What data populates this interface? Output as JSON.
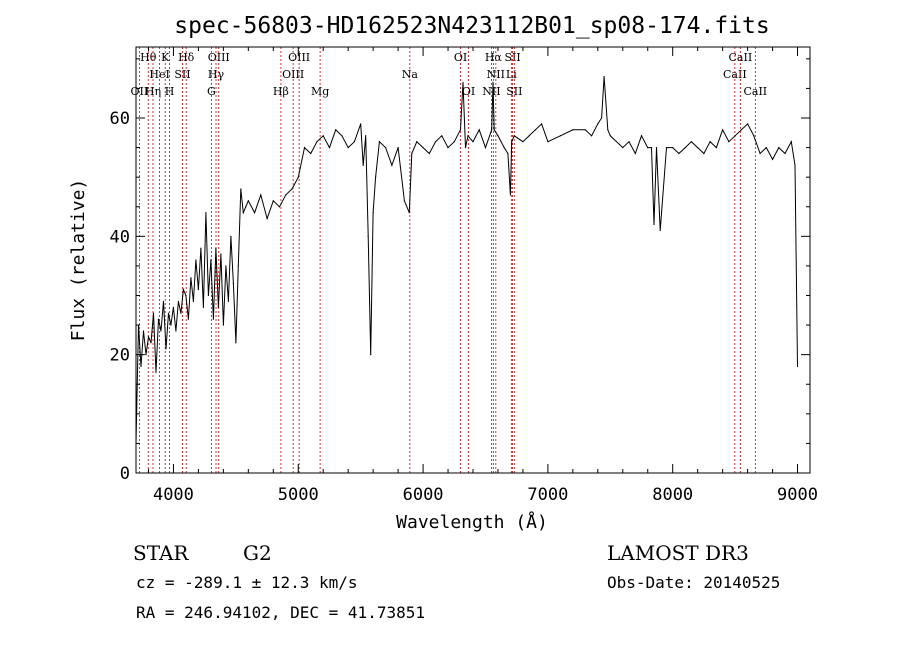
{
  "chart_data": {
    "type": "line",
    "title": "spec-56803-HD162523N423112B01_sp08-174.fits",
    "xlabel": "Wavelength (Å)",
    "ylabel": "Flux (relative)",
    "xlim": [
      3700,
      9100
    ],
    "ylim": [
      0,
      72
    ],
    "xticks": [
      4000,
      5000,
      6000,
      7000,
      8000,
      9000
    ],
    "yticks": [
      0,
      20,
      40,
      60
    ],
    "series": [
      {
        "name": "flux",
        "x": [
          3700,
          3720,
          3740,
          3760,
          3780,
          3800,
          3820,
          3840,
          3860,
          3880,
          3900,
          3920,
          3940,
          3960,
          3980,
          4000,
          4020,
          4040,
          4060,
          4080,
          4100,
          4120,
          4140,
          4160,
          4180,
          4200,
          4220,
          4240,
          4260,
          4280,
          4300,
          4320,
          4340,
          4360,
          4380,
          4400,
          4420,
          4440,
          4460,
          4480,
          4500,
          4520,
          4540,
          4560,
          4580,
          4600,
          4650,
          4700,
          4750,
          4800,
          4850,
          4900,
          4950,
          5000,
          5050,
          5100,
          5150,
          5200,
          5250,
          5300,
          5350,
          5400,
          5450,
          5500,
          5520,
          5540,
          5560,
          5580,
          5600,
          5620,
          5650,
          5700,
          5750,
          5800,
          5850,
          5890,
          5910,
          5950,
          6000,
          6050,
          6100,
          6150,
          6200,
          6250,
          6300,
          6320,
          6340,
          6360,
          6400,
          6450,
          6500,
          6550,
          6560,
          6570,
          6600,
          6650,
          6680,
          6700,
          6710,
          6730,
          6800,
          6850,
          6900,
          6950,
          7000,
          7100,
          7200,
          7300,
          7350,
          7400,
          7430,
          7450,
          7480,
          7500,
          7600,
          7650,
          7700,
          7750,
          7800,
          7830,
          7850,
          7870,
          7900,
          7950,
          8000,
          8050,
          8100,
          8150,
          8200,
          8250,
          8300,
          8350,
          8400,
          8450,
          8500,
          8550,
          8600,
          8650,
          8700,
          8750,
          8800,
          8850,
          8900,
          8950,
          8980,
          9000
        ],
        "values": [
          5,
          25,
          18,
          24,
          20,
          23,
          22,
          27,
          17,
          26,
          24,
          29,
          21,
          27,
          25,
          28,
          24,
          29,
          27,
          31,
          30,
          26,
          33,
          29,
          36,
          31,
          38,
          28,
          44,
          30,
          36,
          26,
          38,
          28,
          37,
          25,
          35,
          29,
          40,
          32,
          22,
          35,
          48,
          44,
          45,
          46,
          44,
          47,
          43,
          46,
          45,
          47,
          48,
          50,
          55,
          54,
          56,
          57,
          55,
          58,
          57,
          55,
          56,
          59,
          52,
          57,
          40,
          20,
          44,
          50,
          56,
          55,
          52,
          55,
          46,
          44,
          54,
          56,
          55,
          54,
          56,
          57,
          55,
          56,
          58,
          66,
          55,
          57,
          56,
          58,
          55,
          58,
          66,
          58,
          57,
          55,
          54,
          47,
          56,
          57,
          56,
          57,
          58,
          59,
          56,
          57,
          58,
          58,
          57,
          59,
          60,
          67,
          58,
          57,
          55,
          56,
          54,
          57,
          55,
          55,
          42,
          55,
          41,
          55,
          55,
          54,
          55,
          56,
          55,
          54,
          56,
          55,
          58,
          56,
          57,
          58,
          59,
          57,
          54,
          55,
          53,
          55,
          54,
          56,
          52,
          18
        ]
      }
    ],
    "line_markers": [
      {
        "label": "OII",
        "wavelength": 3727,
        "row": 2
      },
      {
        "label": "Hθ",
        "wavelength": 3798,
        "row": 0
      },
      {
        "label": "Hη",
        "wavelength": 3836,
        "row": 2
      },
      {
        "label": "HeI",
        "wavelength": 3889,
        "row": 1
      },
      {
        "label": "K",
        "wavelength": 3934,
        "row": 0
      },
      {
        "label": "H",
        "wavelength": 3969,
        "row": 2
      },
      {
        "label": "SII",
        "wavelength": 4072,
        "row": 1
      },
      {
        "label": "Hδ",
        "wavelength": 4102,
        "row": 0
      },
      {
        "label": "G",
        "wavelength": 4304,
        "row": 2
      },
      {
        "label": "Hγ",
        "wavelength": 4341,
        "row": 1
      },
      {
        "label": "OIII",
        "wavelength": 4363,
        "row": 0
      },
      {
        "label": "Hβ",
        "wavelength": 4861,
        "row": 2
      },
      {
        "label": "OIII",
        "wavelength": 4959,
        "row": 1
      },
      {
        "label": "OIII",
        "wavelength": 5007,
        "row": 0
      },
      {
        "label": "Mg",
        "wavelength": 5175,
        "row": 2
      },
      {
        "label": "Na",
        "wavelength": 5894,
        "row": 1
      },
      {
        "label": "OI",
        "wavelength": 6300,
        "row": 0
      },
      {
        "label": "OI",
        "wavelength": 6364,
        "row": 2
      },
      {
        "label": "NII",
        "wavelength": 6548,
        "row": 2
      },
      {
        "label": "Hα",
        "wavelength": 6563,
        "row": 0
      },
      {
        "label": "NII",
        "wavelength": 6583,
        "row": 1
      },
      {
        "label": "Li",
        "wavelength": 6707,
        "row": 1
      },
      {
        "label": "SII",
        "wavelength": 6717,
        "row": 0
      },
      {
        "label": "SII",
        "wavelength": 6731,
        "row": 2
      },
      {
        "label": "CaII",
        "wavelength": 8498,
        "row": 1
      },
      {
        "label": "CaII",
        "wavelength": 8542,
        "row": 0
      },
      {
        "label": "CaII",
        "wavelength": 8662,
        "row": 2
      }
    ],
    "marker_color": "#cc0000",
    "line_color": "#000000",
    "grid": false
  },
  "info": {
    "class_label": "STAR",
    "subclass_label": "G2",
    "cz_line": "cz = -289.1 ± 12.3 km/s",
    "radec_line": "RA = 246.94102, DEC =  41.73851",
    "survey": "LAMOST DR3",
    "obs_date": "Obs-Date: 20140525"
  }
}
